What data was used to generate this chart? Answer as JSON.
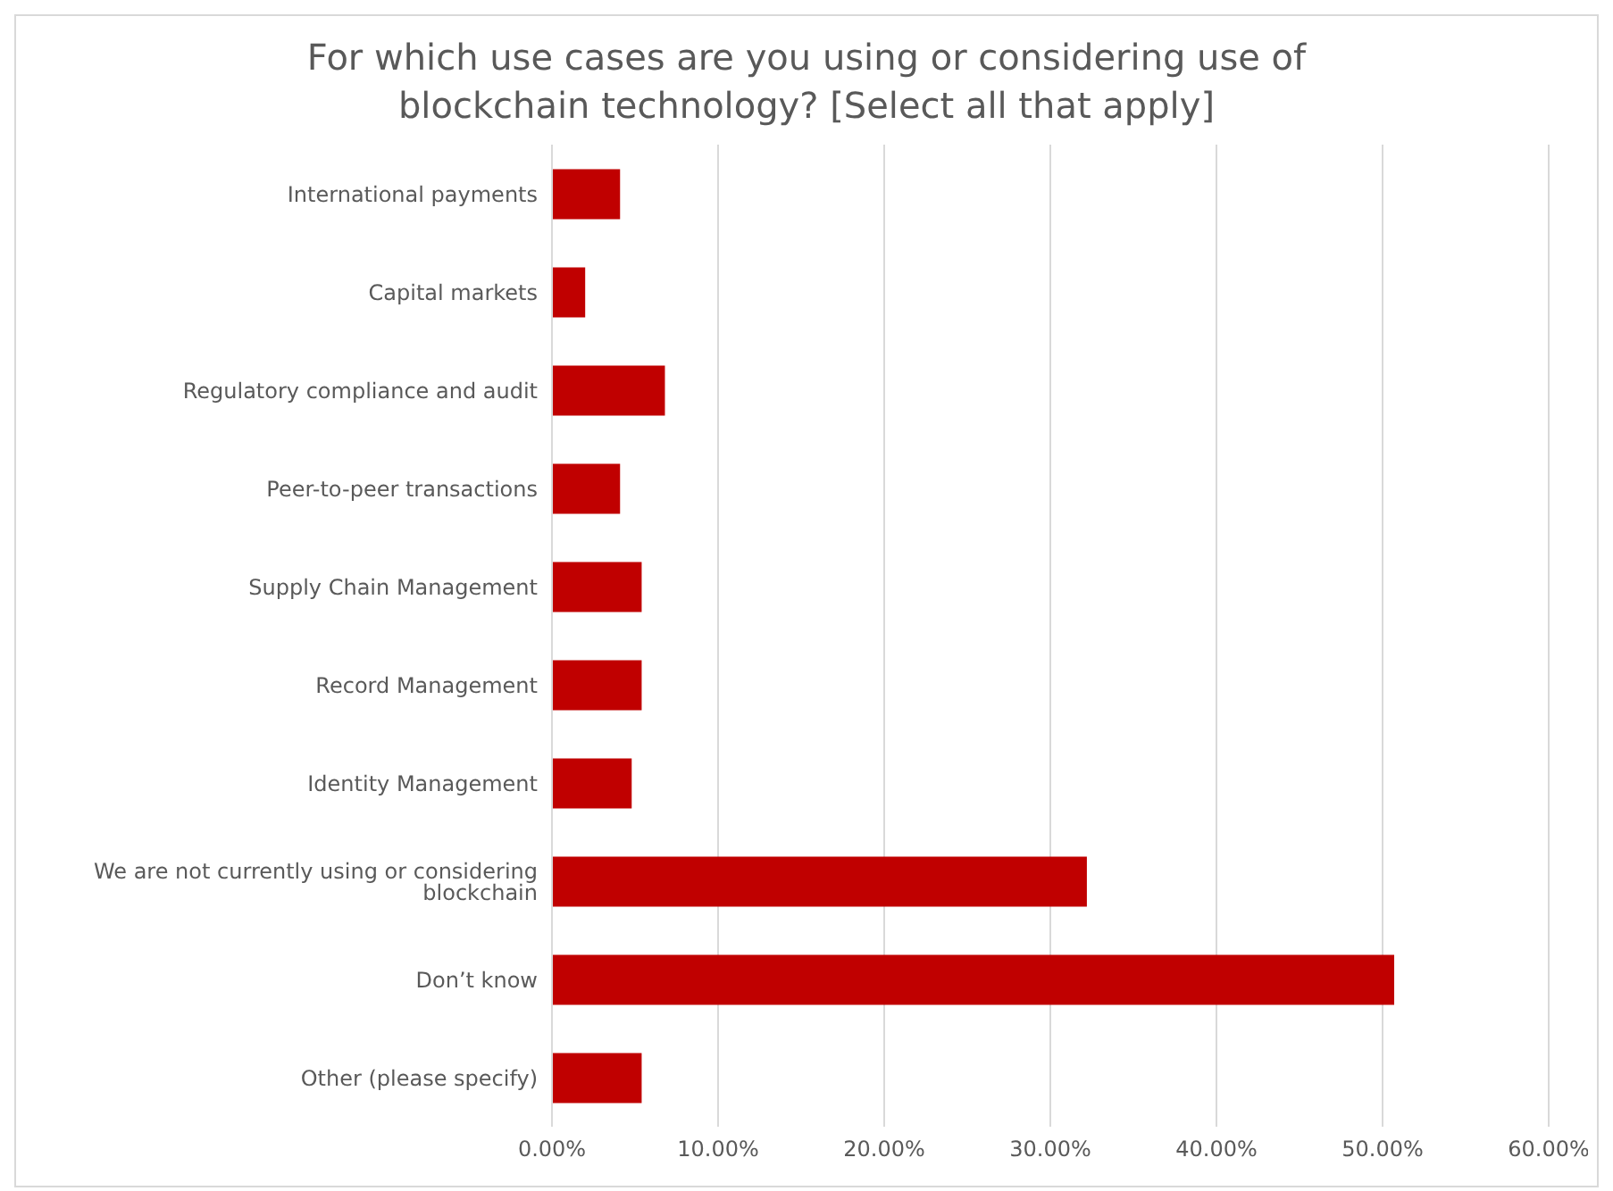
{
  "chart_data": {
    "type": "bar",
    "orientation": "horizontal",
    "title": "For which use cases are you using or considering use of blockchain technology? [Select all that apply]",
    "categories": [
      "International payments",
      "Capital markets",
      "Regulatory compliance and audit",
      "Peer-to-peer transactions",
      "Supply Chain Management",
      "Record Management",
      "Identity Management",
      "We are not currently using or considering blockchain",
      "Don’t know",
      "Other (please specify)"
    ],
    "values": [
      4.1,
      2.0,
      6.8,
      4.1,
      5.4,
      5.4,
      4.8,
      32.2,
      50.7,
      5.4
    ],
    "color": "#c00000",
    "xlim": [
      0,
      60
    ],
    "xticks": [
      {
        "value": 0,
        "label": "0.00%"
      },
      {
        "value": 10,
        "label": "10.00%"
      },
      {
        "value": 20,
        "label": "20.00%"
      },
      {
        "value": 30,
        "label": "30.00%"
      },
      {
        "value": 40,
        "label": "40.00%"
      },
      {
        "value": 50,
        "label": "50.00%"
      },
      {
        "value": 60,
        "label": "60.00%"
      }
    ],
    "grid": "x"
  }
}
